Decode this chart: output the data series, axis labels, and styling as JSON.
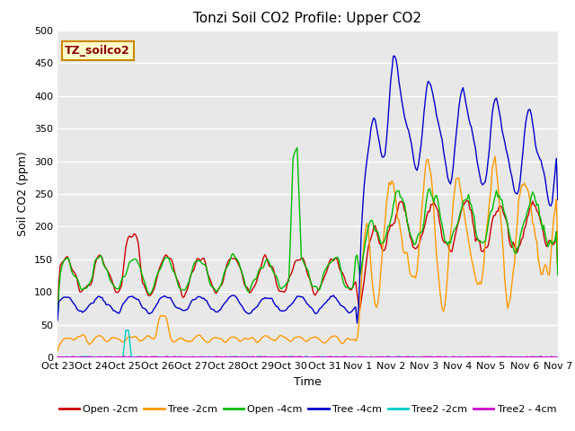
{
  "title": "Tonzi Soil CO2 Profile: Upper CO2",
  "ylabel": "Soil CO2 (ppm)",
  "xlabel": "Time",
  "ylim": [
    0,
    500
  ],
  "legend_label": "TZ_soilco2",
  "plot_bg": "#e8e8e8",
  "series_colors": {
    "open2": "#cc0000",
    "tree2": "#ff9900",
    "open4": "#00bb00",
    "tree4": "#0000cc",
    "tree2_2cm": "#00cccc",
    "tree2_4cm": "#cc00cc"
  },
  "series_labels": [
    "Open -2cm",
    "Tree -2cm",
    "Open -4cm",
    "Tree -4cm",
    "Tree2 -2cm",
    "Tree2 - 4cm"
  ],
  "xtick_labels": [
    "Oct 23",
    "Oct 24",
    "Oct 25",
    "Oct 26",
    "Oct 27",
    "Oct 28",
    "Oct 29",
    "Oct 30",
    "Oct 31",
    "Nov 1",
    "Nov 2",
    "Nov 3",
    "Nov 4",
    "Nov 5",
    "Nov 6",
    "Nov 7"
  ],
  "ytick_labels": [
    "0",
    "50",
    "100",
    "150",
    "200",
    "250",
    "300",
    "350",
    "400",
    "450",
    "500"
  ],
  "ytick_vals": [
    0,
    50,
    100,
    150,
    200,
    250,
    300,
    350,
    400,
    450,
    500
  ],
  "n_points": 360,
  "figsize": [
    6.4,
    4.8
  ],
  "dpi": 100
}
